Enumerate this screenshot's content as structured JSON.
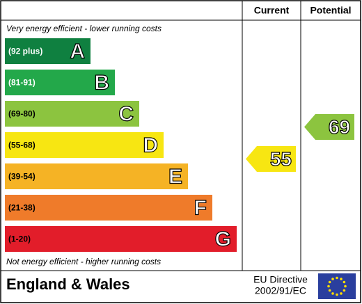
{
  "header": {
    "current": "Current",
    "potential": "Potential"
  },
  "top_note": "Very energy efficient - lower running costs",
  "bands": [
    {
      "range": "(92 plus)",
      "letter": "A"
    },
    {
      "range": "(81-91)",
      "letter": "B"
    },
    {
      "range": "(69-80)",
      "letter": "C"
    },
    {
      "range": "(55-68)",
      "letter": "D"
    },
    {
      "range": "(39-54)",
      "letter": "E"
    },
    {
      "range": "(21-38)",
      "letter": "F"
    },
    {
      "range": "(1-20)",
      "letter": "G"
    }
  ],
  "bottom_note": "Not energy efficient - higher running costs",
  "current": {
    "value": 55
  },
  "potential": {
    "value": 69
  },
  "footer": {
    "region": "England & Wales",
    "directive": [
      "EU Directive",
      "2002/91/EC"
    ]
  }
}
